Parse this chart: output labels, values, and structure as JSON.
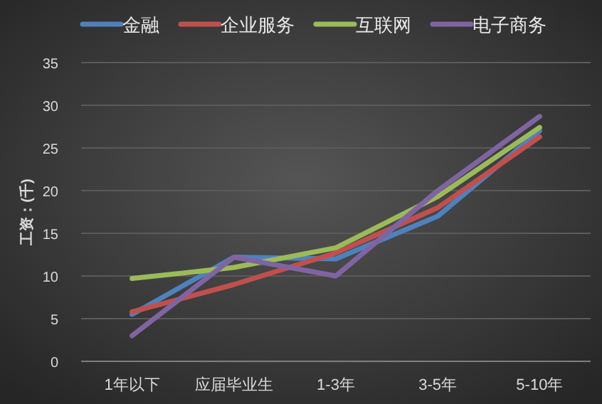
{
  "chart_data": {
    "type": "line",
    "ylabel": "工资：(千)",
    "categories": [
      "1年以下",
      "应届毕业生",
      "1-3年",
      "3-5年",
      "5-10年"
    ],
    "series": [
      {
        "name": "金融",
        "color": "#4f81bd",
        "values": [
          5.5,
          12.2,
          12,
          17,
          27
        ]
      },
      {
        "name": "企业服务",
        "color": "#c0504d",
        "values": [
          5.8,
          9,
          12.7,
          18,
          26.3
        ]
      },
      {
        "name": "互联网",
        "color": "#9bbb59",
        "values": [
          9.7,
          11,
          13.3,
          19.3,
          27.4
        ]
      },
      {
        "name": "电子商务",
        "color": "#8064a2",
        "values": [
          3,
          12.2,
          10,
          20,
          28.7
        ]
      }
    ],
    "ylim": [
      0,
      35
    ],
    "yticks": [
      0,
      5,
      10,
      15,
      20,
      25,
      30,
      35
    ],
    "grid": "y",
    "legend": "top",
    "marker": "none",
    "line_style": "solid"
  }
}
